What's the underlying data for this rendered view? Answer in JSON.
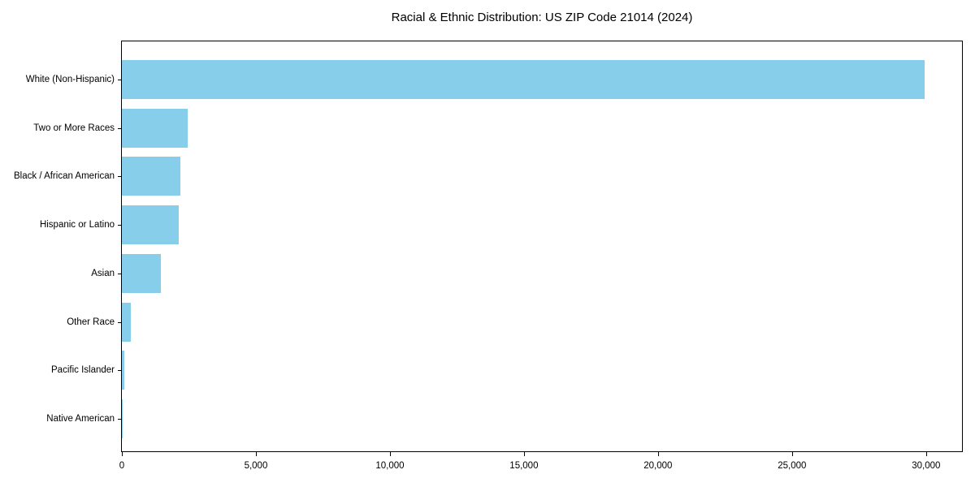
{
  "chart_data": {
    "type": "bar",
    "orientation": "horizontal",
    "title": "Racial & Ethnic Distribution: US ZIP Code 21014 (2024)",
    "categories": [
      "White (Non-Hispanic)",
      "Two or More Races",
      "Black / African American",
      "Hispanic or Latino",
      "Asian",
      "Other Race",
      "Pacific Islander",
      "Native American"
    ],
    "values": [
      29960,
      2460,
      2190,
      2130,
      1450,
      340,
      100,
      20
    ],
    "bar_color": "#87CEEB",
    "xlabel": "",
    "ylabel": "",
    "xlim": [
      0,
      31400
    ],
    "x_ticks": [
      0,
      5000,
      10000,
      15000,
      20000,
      25000,
      30000
    ],
    "x_tick_labels": [
      "0",
      "5,000",
      "10,000",
      "15,000",
      "20,000",
      "25,000",
      "30,000"
    ],
    "grid": false,
    "legend": "none",
    "background_color": "#ffffff",
    "spine_color": "#000000",
    "text_color": "#000000"
  }
}
